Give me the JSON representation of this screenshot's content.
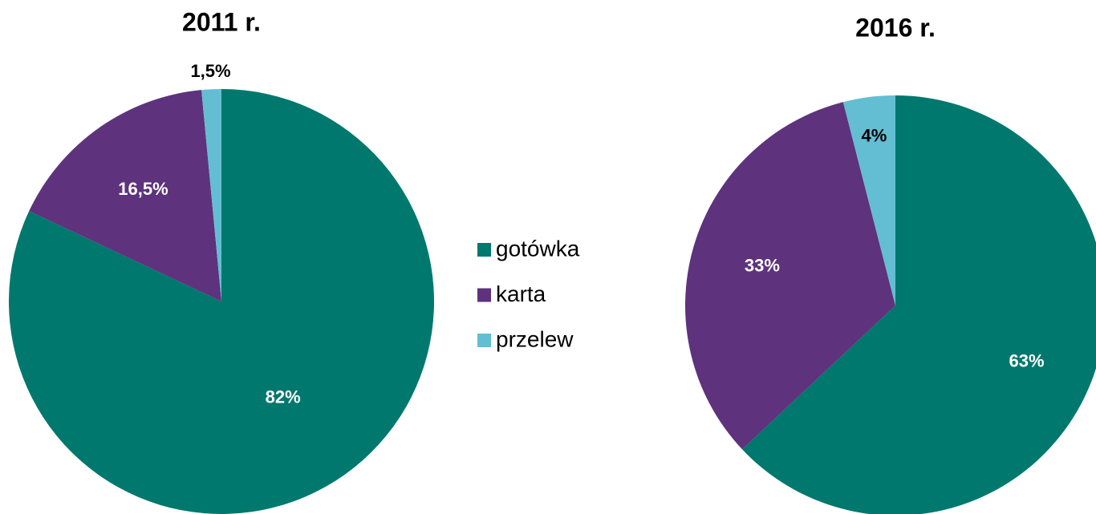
{
  "chart_data": [
    {
      "type": "pie",
      "title": "2011 r.",
      "values": [
        82,
        16.5,
        1.5
      ],
      "value_labels": [
        "82%",
        "16,5%",
        "1,5%"
      ]
    },
    {
      "type": "pie",
      "title": "2016 r.",
      "values": [
        63,
        33,
        4
      ],
      "value_labels": [
        "63%",
        "33%",
        "4%"
      ]
    }
  ],
  "legend": {
    "categories": [
      "gotówka",
      "karta",
      "przelew"
    ],
    "colors": [
      "#00786e",
      "#5e327c",
      "#63bed3"
    ]
  }
}
